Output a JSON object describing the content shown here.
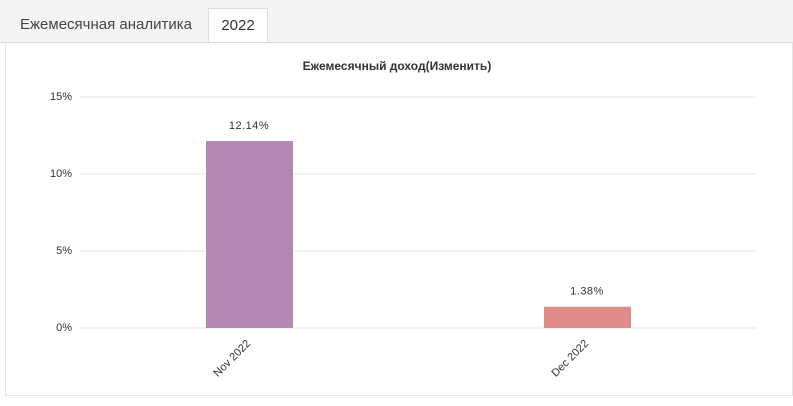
{
  "tabs": [
    "Ежемесячная аналитика",
    "2022"
  ],
  "chart_data": {
    "type": "bar",
    "title": "Ежемесячный доход(Изменить)",
    "categories": [
      "Nov 2022",
      "Dec 2022"
    ],
    "values": [
      12.14,
      1.38
    ],
    "value_labels": [
      "12.14%",
      "1.38%"
    ],
    "colors": [
      "#b487b4",
      "#e08a8a"
    ],
    "ylim": [
      0,
      15
    ],
    "yticks": [
      {
        "value": 0,
        "label": "0%"
      },
      {
        "value": 5,
        "label": "5%"
      },
      {
        "value": 10,
        "label": "10%"
      },
      {
        "value": 15,
        "label": "15%"
      }
    ],
    "grid": true
  }
}
